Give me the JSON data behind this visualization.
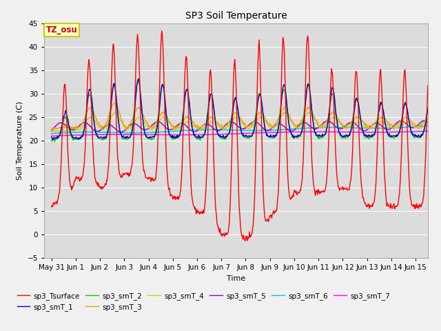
{
  "title": "SP3 Soil Temperature",
  "ylabel": "Soil Temperature (C)",
  "xlabel": "Time",
  "xlim_days": [
    -0.3,
    15.5
  ],
  "ylim": [
    -5,
    45
  ],
  "yticks": [
    -5,
    0,
    5,
    10,
    15,
    20,
    25,
    30,
    35,
    40,
    45
  ],
  "xtick_positions": [
    0,
    1,
    2,
    3,
    4,
    5,
    6,
    7,
    8,
    9,
    10,
    11,
    12,
    13,
    14,
    15
  ],
  "xtick_labels": [
    "May 31",
    "Jun 1",
    "Jun 2",
    "Jun 3",
    "Jun 4",
    "Jun 5",
    "Jun 6",
    "Jun 7",
    "Jun 8",
    "Jun 9",
    "Jun 10",
    "Jun 11",
    "Jun 12",
    "Jun 13",
    "Jun 14",
    "Jun 15"
  ],
  "annotation_text": "TZ_osu",
  "annotation_bg": "#ffffcc",
  "annotation_fg": "#cc0000",
  "annotation_border": "#cccc00",
  "colors": {
    "sp3_Tsurface": "#ff0000",
    "sp3_smT_1": "#0000cc",
    "sp3_smT_2": "#00cc00",
    "sp3_smT_3": "#ff9900",
    "sp3_smT_4": "#cccc00",
    "sp3_smT_5": "#9900cc",
    "sp3_smT_6": "#00cccc",
    "sp3_smT_7": "#ff00ff"
  },
  "plot_bg_color": "#dcdcdc",
  "fig_bg_color": "#f0f0f0",
  "grid_color": "#ffffff",
  "linewidth": 1.0,
  "title_fontsize": 10,
  "label_fontsize": 8,
  "tick_fontsize": 7.5,
  "legend_fontsize": 7.5
}
